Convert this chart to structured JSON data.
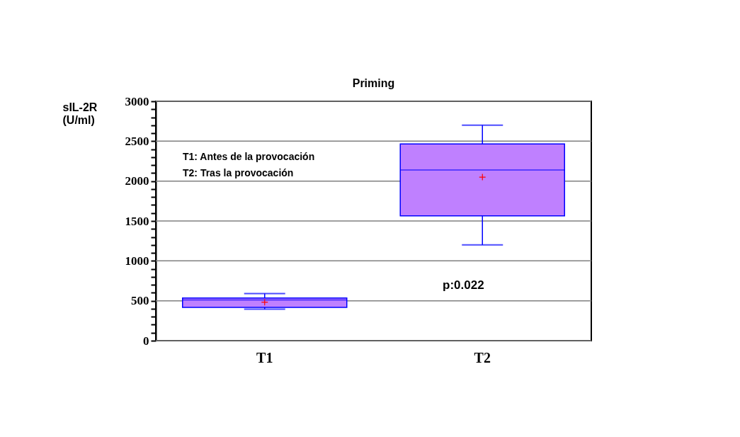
{
  "chart_data": {
    "type": "box",
    "title": "Priming",
    "ylabel": "sIL-2R (U/ml)",
    "categories": [
      "T1",
      "T2"
    ],
    "color": "#bf80ff",
    "boxes": [
      {
        "low": 395,
        "q1": 417,
        "median": 510,
        "q3": 535,
        "high": 590,
        "mean": 482
      },
      {
        "low": 1200,
        "q1": 1565,
        "median": 2140,
        "q3": 2465,
        "high": 2700,
        "mean": 2050
      }
    ],
    "ylim": [
      0,
      3000
    ],
    "yticks": [
      0,
      {
        "value": 100,
        "label": null
      },
      {
        "value": 200,
        "label": null
      },
      {
        "value": 300,
        "label": null
      },
      {
        "value": 400,
        "label": null
      },
      500,
      {
        "value": 600,
        "label": null
      },
      {
        "value": 700,
        "label": null
      },
      {
        "value": 800,
        "label": null
      },
      {
        "value": 900,
        "label": null
      },
      1000,
      {
        "value": 1100,
        "label": null
      },
      {
        "value": 1200,
        "label": null
      },
      {
        "value": 1300,
        "label": null
      },
      {
        "value": 1400,
        "label": null
      },
      1500,
      {
        "value": 1600,
        "label": null
      },
      {
        "value": 1700,
        "label": null
      },
      {
        "value": 1800,
        "label": null
      },
      {
        "value": 1900,
        "label": null
      },
      2000,
      {
        "value": 2100,
        "label": null
      },
      {
        "value": 2200,
        "label": null
      },
      {
        "value": 2300,
        "label": null
      },
      {
        "value": 2400,
        "label": null
      },
      2500,
      {
        "value": 2600,
        "label": null
      },
      {
        "value": 2700,
        "label": null
      },
      {
        "value": 2800,
        "label": null
      },
      {
        "value": 2900,
        "label": null
      },
      3000
    ],
    "grid": "y",
    "annotations": [
      "T1: Antes de la provocación",
      "T2: Tras la provocación",
      "p:0.022"
    ]
  }
}
